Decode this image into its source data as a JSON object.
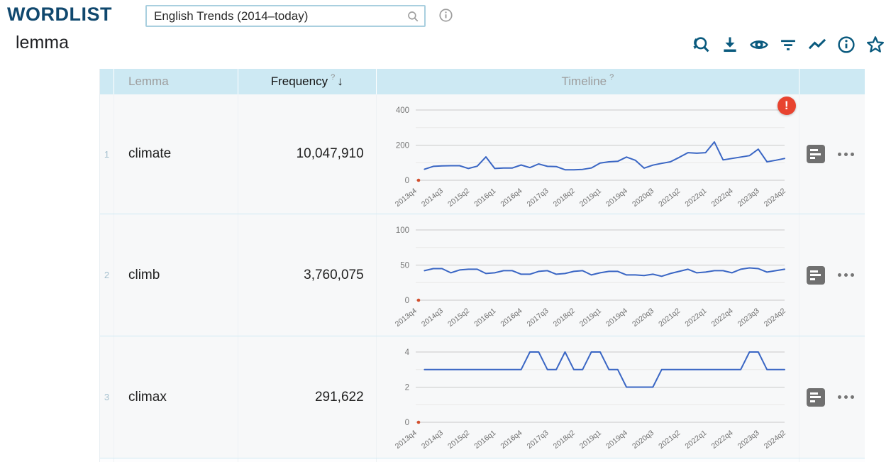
{
  "header": {
    "app_title": "WORDLIST",
    "subtitle": "lemma",
    "search": {
      "value": "English Trends (2014–today)"
    }
  },
  "toolbar": {
    "items": [
      "modify-search",
      "download",
      "view-options",
      "filter",
      "trends",
      "info",
      "favorite"
    ]
  },
  "colors": {
    "brand": "#0a5a7e",
    "chart_line": "#3a66c4",
    "grid_major": "#c9c9c9",
    "grid_minor": "#e8e8e8",
    "axis_text": "#757575",
    "alert": "#e8432f",
    "header_bg": "#cde9f3",
    "missing_marker": "#d3502e"
  },
  "table": {
    "columns": [
      {
        "label": "Lemma"
      },
      {
        "label": "Frequency",
        "help": "?",
        "sort": "↓"
      },
      {
        "label": "Timeline",
        "help": "?"
      }
    ]
  },
  "timeline_axis": {
    "labels": [
      "2013q4",
      "2014q3",
      "2015q2",
      "2016q1",
      "2016q4",
      "2017q3",
      "2018q2",
      "2019q1",
      "2019q4",
      "2020q3",
      "2021q2",
      "2022q1",
      "2022q4",
      "2023q3",
      "2024q2"
    ],
    "label_step": 3,
    "total_slots": 43,
    "first_slot": "2013q4"
  },
  "rows": [
    {
      "index": "1",
      "lemma": "climate",
      "frequency": "10,047,910",
      "alert": "!",
      "chart_data": {
        "type": "line",
        "ymax": 400,
        "yticks": [
          0,
          200,
          400
        ],
        "grid_step": 100,
        "x_start": "2014q1",
        "values": [
          63,
          79,
          82,
          83,
          83,
          67,
          80,
          133,
          67,
          70,
          70,
          87,
          72,
          93,
          79,
          78,
          60,
          60,
          62,
          70,
          98,
          105,
          108,
          132,
          114,
          69,
          86,
          96,
          105,
          130,
          157,
          154,
          157,
          218,
          116,
          124,
          132,
          140,
          177,
          105,
          114,
          124
        ]
      }
    },
    {
      "index": "2",
      "lemma": "climb",
      "frequency": "3,760,075",
      "chart_data": {
        "type": "line",
        "ymax": 100,
        "yticks": [
          0,
          50,
          100
        ],
        "grid_step": 25,
        "x_start": "2014q1",
        "values": [
          42,
          45,
          45,
          39,
          43,
          44,
          44,
          38,
          39,
          42,
          42,
          37,
          37,
          41,
          42,
          37,
          38,
          41,
          42,
          36,
          39,
          41,
          41,
          36,
          36,
          35,
          37,
          34,
          38,
          41,
          44,
          39,
          40,
          42,
          42,
          39,
          44,
          46,
          45,
          40,
          42,
          44
        ]
      }
    },
    {
      "index": "3",
      "lemma": "climax",
      "frequency": "291,622",
      "chart_data": {
        "type": "line",
        "ymax": 4,
        "yticks": [
          0,
          2,
          4
        ],
        "grid_step": 1,
        "x_start": "2014q1",
        "values": [
          3,
          3,
          3,
          3,
          3,
          3,
          3,
          3,
          3,
          3,
          3,
          3,
          4,
          4,
          3,
          3,
          4,
          3,
          3,
          4,
          4,
          3,
          3,
          2,
          2,
          2,
          2,
          3,
          3,
          3,
          3,
          3,
          3,
          3,
          3,
          3,
          3,
          4,
          4,
          3,
          3,
          3
        ]
      }
    }
  ]
}
